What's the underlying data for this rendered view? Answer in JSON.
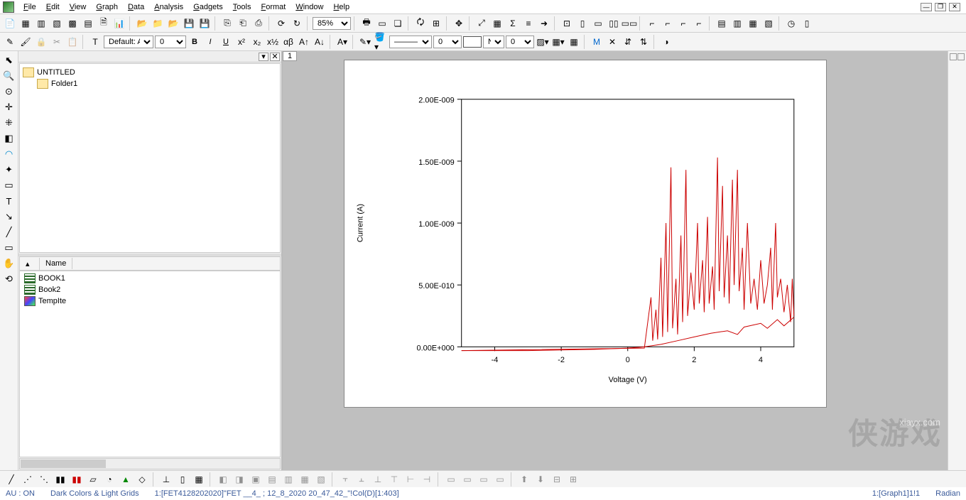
{
  "menu": [
    "File",
    "Edit",
    "View",
    "Graph",
    "Data",
    "Analysis",
    "Gadgets",
    "Tools",
    "Format",
    "Window",
    "Help"
  ],
  "toolbar1": {
    "zoom": "85%"
  },
  "toolbar2": {
    "font_label": "Default: A",
    "font_size": "0",
    "line_style": "Solid",
    "line_w": "0",
    "fill_style": "N",
    "fill_w": "0"
  },
  "project": {
    "root": "UNTITLED",
    "folders": [
      "Folder1"
    ],
    "list_header": [
      "",
      "Name"
    ],
    "items": [
      {
        "type": "workbook",
        "name": "BOOK1"
      },
      {
        "type": "workbook",
        "name": "Book2"
      },
      {
        "type": "graph",
        "name": "TempIte"
      }
    ]
  },
  "graph_tab": "1",
  "chart": {
    "type": "line",
    "title": "",
    "xlabel": "Voltage (V)",
    "ylabel": "Current (A)",
    "label_fontsize": 18,
    "tick_fontsize": 15,
    "line_color": "#cc0000",
    "line_width": 1,
    "background_color": "#ffffff",
    "axis_color": "#000000",
    "xlim": [
      -5,
      5
    ],
    "ylim": [
      0,
      2e-09
    ],
    "xticks": [
      -4,
      -2,
      0,
      2,
      4
    ],
    "yticks": [
      0,
      5e-10,
      1e-09,
      1.5e-09,
      2e-09
    ],
    "ytick_labels": [
      "0.00E+000",
      "5.00E-010",
      "1.00E-009",
      "1.50E-009",
      "2.00E-009"
    ],
    "series": {
      "baseline": {
        "comment": "lower smooth trace, x in [-5,5] → y≈0 with slight rise after x>2",
        "pts": [
          [
            -5,
            -3e-11
          ],
          [
            -4,
            -3e-11
          ],
          [
            -3,
            -3e-11
          ],
          [
            -2,
            -2.5e-11
          ],
          [
            -1,
            -2e-11
          ],
          [
            0,
            -1e-11
          ],
          [
            0.5,
            0
          ],
          [
            1,
            2e-11
          ],
          [
            1.5,
            5e-11
          ],
          [
            2,
            8e-11
          ],
          [
            2.5,
            1.1e-10
          ],
          [
            3,
            1.3e-10
          ],
          [
            3.3,
            1e-10
          ],
          [
            3.5,
            1.6e-10
          ],
          [
            4,
            1.9e-10
          ],
          [
            4.2,
            1.5e-10
          ],
          [
            4.5,
            2.2e-10
          ],
          [
            4.7,
            1.7e-10
          ],
          [
            5,
            2.4e-10
          ]
        ]
      },
      "spiky": {
        "comment": "noisy spikes between x≈0.7 and x≈5",
        "pts": [
          [
            -5,
            -3e-11
          ],
          [
            0.5,
            -1e-11
          ],
          [
            0.7,
            4e-10
          ],
          [
            0.75,
            5e-11
          ],
          [
            0.85,
            3e-10
          ],
          [
            0.9,
            6e-11
          ],
          [
            1.0,
            7.2e-10
          ],
          [
            1.05,
            8e-11
          ],
          [
            1.15,
            1e-09
          ],
          [
            1.2,
            1.2e-10
          ],
          [
            1.3,
            1.45e-09
          ],
          [
            1.35,
            1.5e-10
          ],
          [
            1.45,
            5.5e-10
          ],
          [
            1.5,
            1e-10
          ],
          [
            1.6,
            9e-10
          ],
          [
            1.65,
            2e-10
          ],
          [
            1.75,
            1.43e-09
          ],
          [
            1.8,
            2.5e-10
          ],
          [
            1.9,
            6e-10
          ],
          [
            2.0,
            3e-10
          ],
          [
            2.1,
            1e-09
          ],
          [
            2.15,
            3.5e-10
          ],
          [
            2.25,
            7e-10
          ],
          [
            2.3,
            2.8e-10
          ],
          [
            2.4,
            1.05e-09
          ],
          [
            2.45,
            3.5e-10
          ],
          [
            2.55,
            6.5e-10
          ],
          [
            2.6,
            3e-10
          ],
          [
            2.7,
            1.53e-09
          ],
          [
            2.75,
            4.5e-10
          ],
          [
            2.85,
            1.3e-09
          ],
          [
            2.9,
            4e-10
          ],
          [
            3.0,
            9e-10
          ],
          [
            3.05,
            3.5e-10
          ],
          [
            3.15,
            1.35e-09
          ],
          [
            3.2,
            5e-10
          ],
          [
            3.3,
            1.43e-09
          ],
          [
            3.35,
            4.5e-10
          ],
          [
            3.45,
            8e-10
          ],
          [
            3.5,
            3e-10
          ],
          [
            3.6,
            1e-09
          ],
          [
            3.7,
            3.5e-10
          ],
          [
            3.8,
            5.5e-10
          ],
          [
            3.9,
            3e-10
          ],
          [
            4.0,
            7e-10
          ],
          [
            4.1,
            3.5e-10
          ],
          [
            4.2,
            5e-10
          ],
          [
            4.3,
            8e-10
          ],
          [
            4.35,
            3e-10
          ],
          [
            4.45,
            1e-09
          ],
          [
            4.5,
            4e-10
          ],
          [
            4.6,
            5.5e-10
          ],
          [
            4.7,
            2.8e-10
          ],
          [
            4.8,
            5e-10
          ],
          [
            4.9,
            2e-10
          ],
          [
            4.95,
            5.5e-10
          ],
          [
            5.0,
            2.5e-10
          ]
        ]
      }
    }
  },
  "status": {
    "au": "AU : ON",
    "theme": "Dark Colors & Light Grids",
    "src": "1:[FET4128202020]\"FET __4_ ; 12_8_2020 20_47_42_\"!Col(D)[1:403]",
    "right1": "1:[Graph1]1!1",
    "right2": "Radian"
  },
  "watermark": {
    "main": "侠游戏",
    "sub": "xiayx.com"
  },
  "sv": {
    "M": "M"
  }
}
